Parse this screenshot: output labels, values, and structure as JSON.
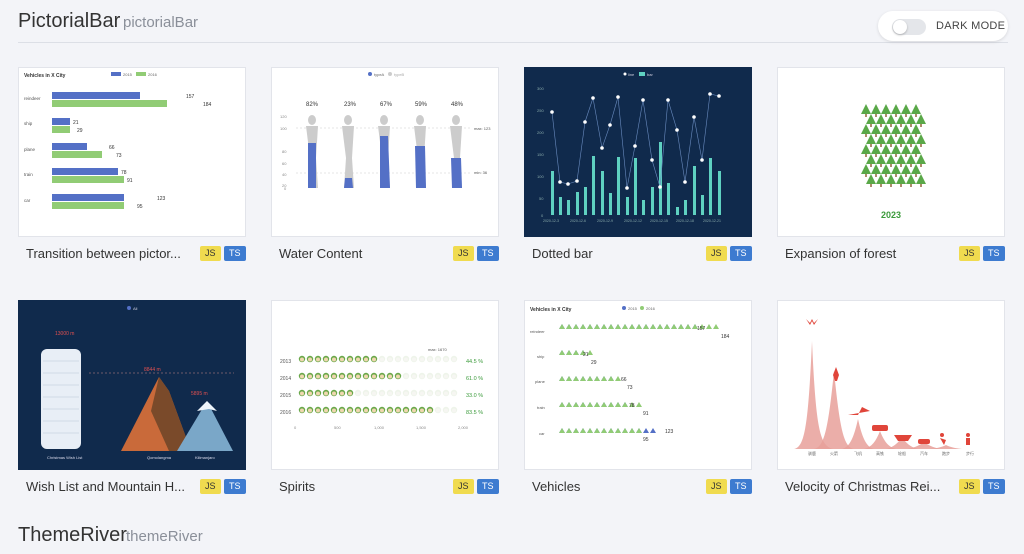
{
  "section": {
    "title": "PictorialBar",
    "subtitle": "pictorialBar"
  },
  "dark_mode": {
    "label": "DARK MODE",
    "enabled": false
  },
  "cards": [
    {
      "caption": "Transition between pictor...",
      "js": "JS",
      "ts": "TS",
      "thumb": {
        "title": "Vehicles in X City",
        "legend": [
          "2015",
          "2016"
        ],
        "rows": [
          {
            "name": "reindeer",
            "a": "157",
            "b": "184"
          },
          {
            "name": "ship",
            "a": "21",
            "b": "29"
          },
          {
            "name": "plane",
            "a": "66",
            "b": "73"
          },
          {
            "name": "train",
            "a": "78",
            "b": "91"
          },
          {
            "name": "car",
            "a": "123",
            "b": "95"
          }
        ]
      }
    },
    {
      "caption": "Water Content",
      "js": "JS",
      "ts": "TS",
      "thumb": {
        "legend": [
          "typeA",
          "typeB"
        ],
        "percents": [
          "82%",
          "23%",
          "67%",
          "59%",
          "48%"
        ],
        "yticks": [
          "120",
          "100",
          "80",
          "60",
          "40",
          "20",
          "0"
        ],
        "max_label": "max: 123",
        "min_label": "min: 36"
      }
    },
    {
      "caption": "Dotted bar",
      "js": "JS",
      "ts": "TS",
      "thumb": {
        "legend": [
          "line",
          "bar"
        ],
        "yticks": [
          "300",
          "250",
          "200",
          "150",
          "100",
          "50",
          "0"
        ],
        "xticks": [
          "2020-12-3",
          "2020-12-6",
          "2020-12-9",
          "2020-12-12",
          "2020-12-15",
          "2020-12-18",
          "2020-12-21"
        ]
      }
    },
    {
      "caption": "Expansion of forest",
      "js": "JS",
      "ts": "TS",
      "thumb": {
        "year": "2023"
      }
    },
    {
      "caption": "Wish List and Mountain H...",
      "js": "JS",
      "ts": "TS",
      "thumb": {
        "legend": "All",
        "label1": "13000 m",
        "label2": "8844 m",
        "label3": "5895 m",
        "x1": "Christmas Wish List",
        "x2": "Qomolangma",
        "x3": "Kilimanjaro"
      }
    },
    {
      "caption": "Spirits",
      "js": "JS",
      "ts": "TS",
      "thumb": {
        "years": [
          "2013",
          "2014",
          "2015",
          "2016"
        ],
        "percents": [
          "44.5 %",
          "61.0 %",
          "33.0 %",
          "83.5 %"
        ],
        "max_label": "max: 1670",
        "xticks": [
          "0",
          "500",
          "1,000",
          "1,500",
          "2,000"
        ]
      }
    },
    {
      "caption": "Vehicles",
      "js": "JS",
      "ts": "TS",
      "thumb": {
        "title": "Vehicles in X City",
        "legend": [
          "2015",
          "2016"
        ],
        "rows": [
          {
            "name": "reindeer",
            "a": "157",
            "b": "184"
          },
          {
            "name": "ship",
            "a": "21",
            "b": "29"
          },
          {
            "name": "plane",
            "a": "66",
            "b": "73"
          },
          {
            "name": "train",
            "a": "78",
            "b": "91"
          },
          {
            "name": "car",
            "a": "123",
            "b": "95"
          }
        ]
      }
    },
    {
      "caption": "Velocity of Christmas Rei...",
      "js": "JS",
      "ts": "TS",
      "thumb": {
        "xlabels": [
          "驯鹿",
          "火箭",
          "飞机",
          "高铁",
          "轮船",
          "汽车",
          "跑步",
          "步行"
        ]
      }
    }
  ],
  "next_section": {
    "title": "ThemeRiver",
    "subtitle": "themeRiver"
  },
  "colors": {
    "blue": "#5470c6",
    "green": "#91cc75",
    "dark_bg": "#102a4c",
    "teal": "#5fd1c1",
    "red": "#d9534f"
  }
}
